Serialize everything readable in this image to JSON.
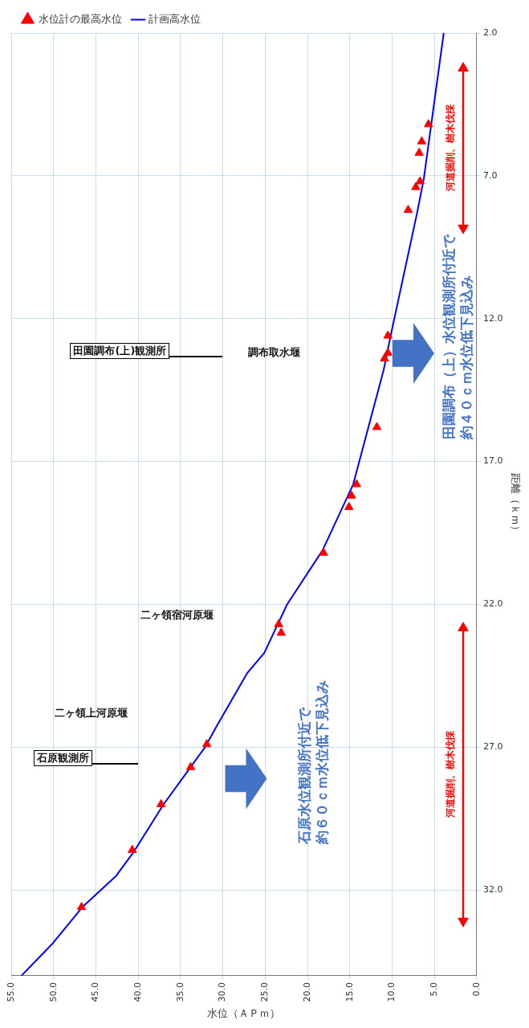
{
  "chart_data": {
    "type": "line",
    "xlabel": "水位（ＡＰｍ）",
    "ylabel": "距離（ｋｍ）",
    "xlim": [
      55,
      0
    ],
    "xticks": [
      {
        "value": 55,
        "label": "55.0"
      },
      {
        "value": 50,
        "label": "50.0"
      },
      {
        "value": 45,
        "label": "45.0"
      },
      {
        "value": 40,
        "label": "40.0"
      },
      {
        "value": 35,
        "label": "35.0"
      },
      {
        "value": 30,
        "label": "30.0"
      },
      {
        "value": 25,
        "label": "25.0"
      },
      {
        "value": 20,
        "label": "20.0"
      },
      {
        "value": 15,
        "label": "15.0"
      },
      {
        "value": 10,
        "label": "10.0"
      },
      {
        "value": 5,
        "label": "5.0"
      },
      {
        "value": 0,
        "label": "0.0"
      }
    ],
    "ylim": [
      35,
      2
    ],
    "yticks": [
      {
        "value": 2,
        "label": "2.0"
      },
      {
        "value": 7,
        "label": "7.0"
      },
      {
        "value": 12,
        "label": "12.0"
      },
      {
        "value": 17,
        "label": "17.0"
      },
      {
        "value": 22,
        "label": "22.0"
      },
      {
        "value": 27,
        "label": "27.0"
      },
      {
        "value": 32,
        "label": "32.0"
      }
    ],
    "grid": true,
    "legend": "top left",
    "series": [
      {
        "name": "計画高水位",
        "marker": "none",
        "color": "#0000ff",
        "x": [
          3.9,
          6.25,
          7.05,
          10.1,
          11.0,
          14.6,
          18.2,
          22.4,
          25.1,
          27.1,
          30.6,
          32.1,
          34.3,
          37.0,
          40.6,
          42.6,
          46.6,
          50.2,
          53.8
        ],
        "values": [
          2.0,
          7.1,
          8.3,
          12.5,
          13.8,
          17.8,
          20.1,
          22.0,
          23.7,
          24.4,
          26.2,
          27.0,
          27.9,
          29.0,
          30.7,
          31.5,
          32.6,
          33.9,
          35.0
        ]
      },
      {
        "name": "水位計の最高水位",
        "type": "scatter",
        "marker": "triangle",
        "color": "#ff0000",
        "x": [
          5.7,
          6.5,
          6.8,
          6.7,
          7.2,
          8.1,
          10.5,
          10.5,
          10.9,
          11.8,
          14.2,
          14.8,
          15.1,
          18.1,
          23.4,
          23.1,
          31.9,
          33.8,
          37.3,
          40.7,
          46.7
        ],
        "values": [
          5.2,
          5.8,
          6.2,
          7.2,
          7.4,
          8.2,
          12.6,
          13.2,
          13.4,
          15.8,
          17.8,
          18.2,
          18.6,
          20.2,
          22.7,
          23.0,
          26.9,
          27.7,
          29.0,
          30.6,
          32.6
        ]
      }
    ],
    "annotations": [
      "田園調布（上）水位観測所付近で",
      "約４０ｃｍ水位低下見込み",
      "石原水位観測所付近で",
      "約６０ｃｍ水位低下見込み",
      "河道掘削、樹木伐採",
      "河道掘削、樹木伐採",
      "田園調布(上)観測所",
      "調布取水堰",
      "二ヶ領宿河原堰",
      "二ヶ領上河原堰",
      "石原観測所"
    ]
  }
}
